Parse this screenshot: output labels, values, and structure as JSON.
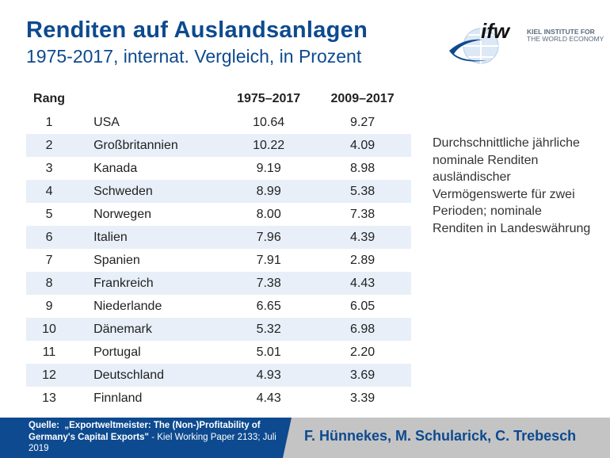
{
  "header": {
    "title": "Renditen auf Auslandsanlagen",
    "subtitle": "1975-2017, internat. Vergleich, in Prozent"
  },
  "logo": {
    "mark": "ifw",
    "line1": "KIEL INSTITUTE FOR",
    "line2": "THE WORLD ECONOMY"
  },
  "table": {
    "headers": [
      "Rang",
      "",
      "1975–2017",
      "2009–2017"
    ],
    "rows": [
      [
        "1",
        "USA",
        "10.64",
        "9.27"
      ],
      [
        "2",
        "Großbritannien",
        "10.22",
        "4.09"
      ],
      [
        "3",
        "Kanada",
        "9.19",
        "8.98"
      ],
      [
        "4",
        "Schweden",
        "8.99",
        "5.38"
      ],
      [
        "5",
        "Norwegen",
        "8.00",
        "7.38"
      ],
      [
        "6",
        "Italien",
        "7.96",
        "4.39"
      ],
      [
        "7",
        "Spanien",
        "7.91",
        "2.89"
      ],
      [
        "8",
        "Frankreich",
        "7.38",
        "4.43"
      ],
      [
        "9",
        "Niederlande",
        "6.65",
        "6.05"
      ],
      [
        "10",
        "Dänemark",
        "5.32",
        "6.98"
      ],
      [
        "11",
        "Portugal",
        "5.01",
        "2.20"
      ],
      [
        "12",
        "Deutschland",
        "4.93",
        "3.69"
      ],
      [
        "13",
        "Finnland",
        "4.43",
        "3.39"
      ]
    ]
  },
  "note": "Durchschnittliche jährliche nominale Renditen ausländischer Vermögenswerte für zwei Perioden; nominale Renditen in Landeswährung",
  "footer": {
    "source_label": "Quelle:",
    "source_title": "„Exportweltmeister: The (Non-)Profitability of Germany's Capital Exports\"",
    "source_rest": " - Kiel Working Paper 2133; Juli 2019",
    "authors": "F. Hünnekes, M. Schularick, C. Trebesch"
  },
  "colors": {
    "brand": "#0d4a8f",
    "row_alt": "#e8eff8",
    "footer_gray": "#c4c4c4"
  }
}
